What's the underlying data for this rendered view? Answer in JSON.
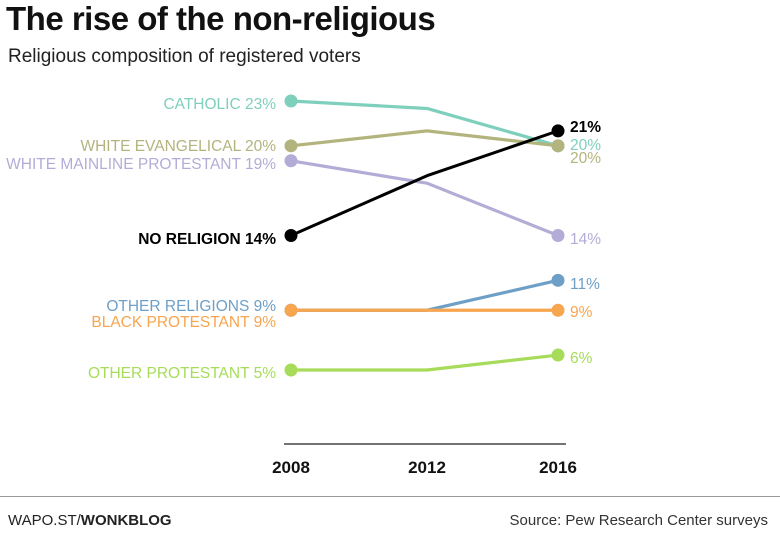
{
  "header": {
    "title": "The rise of the non-religious",
    "subtitle": "Religious composition of registered voters"
  },
  "footer": {
    "brand_prefix": "WAPO.ST/",
    "brand_name": "WONKBLOG",
    "source": "Source: Pew Research Center surveys"
  },
  "chart_data": {
    "type": "line",
    "x": [
      "2008",
      "2012",
      "2016"
    ],
    "series": [
      {
        "name": "CATHOLIC",
        "values": [
          23,
          22.5,
          20
        ],
        "start_label": "23%",
        "end_label": "20%",
        "color": "#7fcfbd",
        "emphasis": false
      },
      {
        "name": "WHITE EVANGELICAL",
        "values": [
          20,
          21,
          20
        ],
        "start_label": "20%",
        "end_label": "20%",
        "color": "#b3b47d",
        "emphasis": false
      },
      {
        "name": "WHITE MAINLINE PROTESTANT",
        "values": [
          19,
          17.5,
          14
        ],
        "start_label": "19%",
        "end_label": "14%",
        "color": "#b3acd6",
        "emphasis": false
      },
      {
        "name": "NO RELIGION",
        "values": [
          14,
          18,
          21
        ],
        "start_label": "14%",
        "end_label": "21%",
        "color": "#000000",
        "emphasis": true
      },
      {
        "name": "OTHER RELIGIONS",
        "values": [
          9,
          9,
          11
        ],
        "start_label": "9%",
        "end_label": "11%",
        "color": "#6e9fc6",
        "emphasis": false
      },
      {
        "name": "BLACK PROTESTANT",
        "values": [
          9,
          9,
          9
        ],
        "start_label": "9%",
        "end_label": "9%",
        "color": "#f7a54e",
        "emphasis": false
      },
      {
        "name": "OTHER PROTESTANT",
        "values": [
          5,
          5,
          6
        ],
        "start_label": "5%",
        "end_label": "6%",
        "color": "#a6dc5a",
        "emphasis": false
      }
    ],
    "ylim": [
      5,
      23
    ],
    "grid": false,
    "legend": "direct labels"
  }
}
